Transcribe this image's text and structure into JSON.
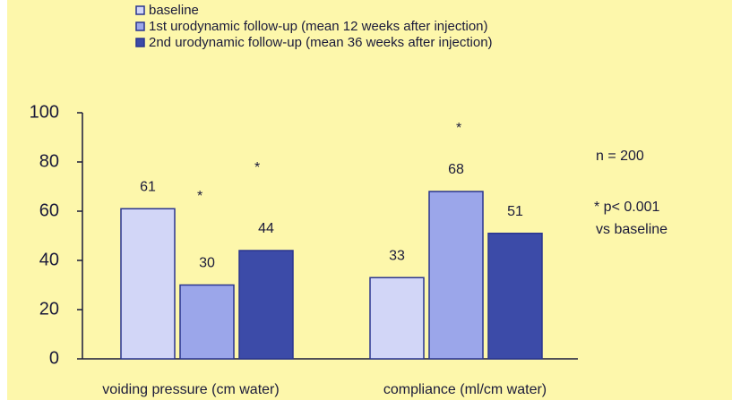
{
  "chart_data": {
    "type": "bar",
    "categories": [
      "voiding pressure (cm water)",
      "compliance (ml/cm water)"
    ],
    "series": [
      {
        "name": "baseline",
        "color": "#d2d6f7",
        "values": [
          61,
          33
        ]
      },
      {
        "name": "1st urodynamic follow-up (mean 12 weeks after injection)",
        "color": "#9ba6ea",
        "values": [
          30,
          68
        ]
      },
      {
        "name": "2nd urodynamic follow-up (mean 36 weeks after injection)",
        "color": "#3c4ba8",
        "values": [
          44,
          51
        ]
      }
    ],
    "ylim": [
      0,
      100
    ],
    "yticks": [
      0,
      20,
      40,
      60,
      80,
      100
    ],
    "grid": false,
    "legend": "top",
    "annotations": [
      "*",
      "*",
      "*",
      "n = 200",
      "* p< 0.001",
      "vs baseline"
    ]
  }
}
